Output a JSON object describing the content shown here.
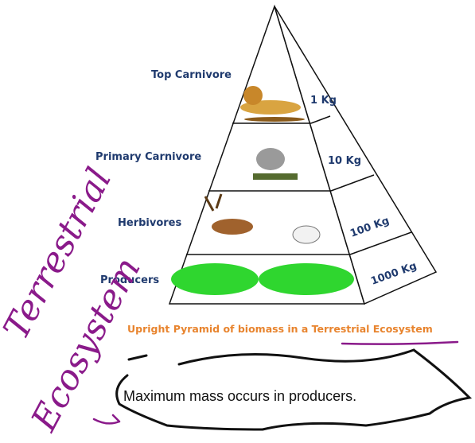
{
  "levels": [
    {
      "label": "Top Carnivore",
      "mass": "1 Kg"
    },
    {
      "label": "Primary Carnivore",
      "mass": "10 Kg"
    },
    {
      "label": "Herbivores",
      "mass": "100 Kg"
    },
    {
      "label": "Producers",
      "mass": "1000 Kg"
    }
  ],
  "caption": "Upright Pyramid of biomass in a Terrestrial Ecosystem",
  "handwriting": [
    "Terrestrial",
    "Ecosystem"
  ],
  "note": "Maximum mass occurs in producers."
}
